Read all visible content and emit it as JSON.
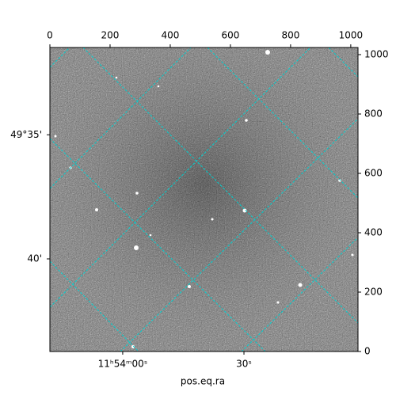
{
  "chart_data": {
    "type": "image",
    "xlabel": "pos.eq.ra",
    "cmap": "gray",
    "xlim": [
      0,
      1024
    ],
    "ylim": [
      0,
      1024
    ],
    "xticks": [
      0,
      200,
      400,
      600,
      800,
      1000
    ],
    "yticks": [
      0,
      200,
      400,
      600,
      800,
      1000
    ],
    "world_xticks": [
      {
        "value": 242,
        "label": "11ʰ54ᵐ00ˢ"
      },
      {
        "value": 645,
        "label": "30ˢ"
      }
    ],
    "world_yticks": [
      {
        "value": 730,
        "label": "49°35'"
      },
      {
        "value": 312,
        "label": "40'"
      }
    ],
    "grid_color": "#00d0d0"
  }
}
